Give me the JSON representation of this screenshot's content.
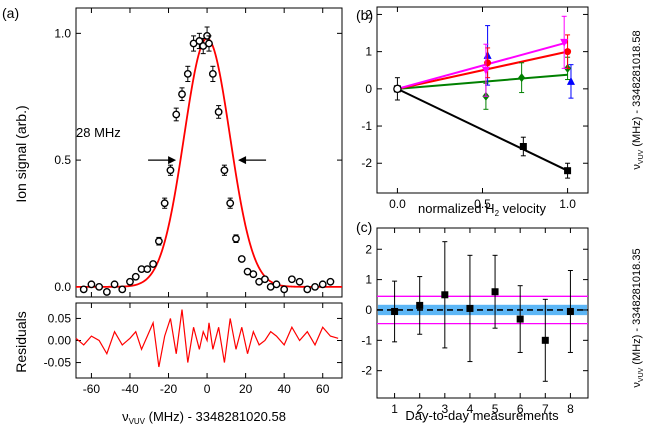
{
  "chart_data": [
    {
      "panel": "a",
      "panel_label": "(a)",
      "type": "scatter",
      "xlabel_main": "ν",
      "xlabel_sub": "VUV",
      "xlabel_rest": " (MHz) - 3348281020.58",
      "ylabel": "Ion signal (arb.)",
      "xlim": [
        -68,
        70
      ],
      "ylim": [
        -0.04,
        1.1
      ],
      "xticks": [
        -60,
        -40,
        -20,
        0,
        20,
        40,
        60
      ],
      "xtick_labels": [
        "-60",
        "-40",
        "-20",
        "0",
        "20",
        "40",
        "60"
      ],
      "yticks": [
        0.0,
        0.5,
        1.0
      ],
      "ytick_labels": [
        "0.0",
        "0.5",
        "1.0"
      ],
      "annotation": "28 MHz",
      "fwhm_markers": [
        -14,
        14
      ],
      "fit": {
        "center": 0,
        "amplitude": 0.98,
        "sigma": 11.9,
        "color": "#ff0000"
      },
      "points": {
        "x": [
          -64,
          -60,
          -56,
          -52,
          -48,
          -44,
          -40,
          -37,
          -34,
          -31,
          -28,
          -25,
          -22,
          -19,
          -16,
          -13,
          -10,
          -7,
          -4,
          -2,
          0,
          1,
          3,
          6,
          9,
          12,
          15,
          18,
          21,
          24,
          27,
          30,
          33,
          36,
          40,
          44,
          48,
          52,
          56,
          60,
          64
        ],
        "y": [
          -0.01,
          0.01,
          0.0,
          -0.02,
          0.01,
          -0.01,
          0.02,
          0.04,
          0.07,
          0.07,
          0.09,
          0.18,
          0.33,
          0.46,
          0.68,
          0.76,
          0.84,
          0.96,
          0.97,
          0.95,
          0.99,
          0.96,
          0.84,
          0.69,
          0.46,
          0.33,
          0.19,
          0.11,
          0.06,
          0.05,
          0.02,
          0.03,
          0.0,
          0.01,
          -0.01,
          0.03,
          0.02,
          -0.01,
          0.0,
          0.01,
          0.02
        ],
        "err": [
          0.01,
          0.01,
          0.01,
          0.01,
          0.01,
          0.01,
          0.01,
          0.01,
          0.01,
          0.01,
          0.01,
          0.015,
          0.02,
          0.02,
          0.025,
          0.025,
          0.03,
          0.03,
          0.03,
          0.03,
          0.035,
          0.03,
          0.03,
          0.025,
          0.02,
          0.02,
          0.015,
          0.01,
          0.01,
          0.01,
          0.01,
          0.01,
          0.01,
          0.01,
          0.01,
          0.01,
          0.01,
          0.01,
          0.01,
          0.01,
          0.01
        ]
      }
    },
    {
      "panel": "a-residuals",
      "type": "line",
      "ylabel": "Residuals",
      "xlim": [
        -68,
        70
      ],
      "ylim": [
        -0.085,
        0.085
      ],
      "yticks": [
        -0.05,
        0.0,
        0.05
      ],
      "ytick_labels": [
        "-0.05",
        "0.00",
        "0.05"
      ],
      "color": "#ff0000",
      "x": [
        -68,
        -64,
        -60,
        -56,
        -52,
        -48,
        -44,
        -40,
        -37,
        -34,
        -31,
        -28,
        -25,
        -22,
        -19,
        -16,
        -13,
        -10,
        -7,
        -4,
        -2,
        0,
        1,
        3,
        6,
        9,
        12,
        15,
        18,
        21,
        24,
        27,
        30,
        33,
        36,
        40,
        44,
        48,
        52,
        56,
        60,
        64,
        68
      ],
      "y": [
        0.005,
        -0.01,
        0.01,
        0.0,
        -0.03,
        0.02,
        -0.01,
        0.005,
        0.02,
        -0.02,
        0.01,
        0.04,
        -0.06,
        0.01,
        0.05,
        -0.03,
        0.07,
        -0.05,
        0.03,
        -0.02,
        0.02,
        0.0,
        0.04,
        -0.02,
        0.03,
        -0.05,
        0.05,
        -0.02,
        0.03,
        -0.03,
        0.02,
        -0.01,
        0.0,
        0.02,
        0.01,
        -0.01,
        0.03,
        0.0,
        0.02,
        -0.01,
        0.03,
        0.01,
        0.005
      ]
    },
    {
      "panel": "b",
      "panel_label": "(b)",
      "type": "scatter",
      "xlabel_pre": "normalized H",
      "xlabel_sub": "2",
      "xlabel_post": " velocity",
      "ylabel_main": "ν",
      "ylabel_sub": "VUV",
      "ylabel_rest": " (MHz) - 3348281018.58",
      "xlim": [
        -0.12,
        1.12
      ],
      "ylim": [
        -2.8,
        2.2
      ],
      "xticks": [
        0,
        0.5,
        1
      ],
      "xtick_labels": [
        "0.0",
        "0.5",
        "1.0"
      ],
      "yticks": [
        -2,
        -1,
        0,
        1,
        2
      ],
      "ytick_labels": [
        "-2",
        "-1",
        "0",
        "1",
        "2"
      ],
      "series": [
        {
          "marker": "square",
          "color": "#000000",
          "x": [
            0,
            0.74,
            1.0
          ],
          "y": [
            0,
            -1.55,
            -2.2
          ],
          "err": [
            0.3,
            0.25,
            0.2
          ],
          "fit_slope": -2.2
        },
        {
          "marker": "triangle",
          "color": "#0000ff",
          "x": [
            0.53,
            1.02
          ],
          "y": [
            0.9,
            0.2
          ],
          "err": [
            0.8,
            0.45
          ],
          "fit_slope": null
        },
        {
          "marker": "diamond",
          "color": "#008000",
          "x": [
            0.52,
            0.73,
            1.0
          ],
          "y": [
            -0.2,
            0.3,
            0.55
          ],
          "err": [
            0.35,
            0.4,
            0.3
          ],
          "fit_slope": 0.38
        },
        {
          "marker": "circle",
          "color": "#ff0000",
          "x": [
            0.53,
            1.0
          ],
          "y": [
            0.7,
            1.0
          ],
          "err": [
            0.4,
            0.45
          ],
          "fit_slope": 1.0
        },
        {
          "marker": "down-triangle",
          "color": "#ff00ff",
          "x": [
            0.52,
            0.98
          ],
          "y": [
            0.5,
            1.25
          ],
          "err": [
            0.7,
            0.7
          ],
          "fit_slope": 1.25
        }
      ]
    },
    {
      "panel": "c",
      "panel_label": "(c)",
      "type": "scatter",
      "xlabel": "Day-to-day measurements",
      "ylabel_main": "ν",
      "ylabel_sub": "VUV",
      "ylabel_rest": " (MHz) - 3348281018.35",
      "xlim": [
        0.3,
        8.7
      ],
      "ylim": [
        -2.9,
        2.7
      ],
      "xticks": [
        1,
        2,
        3,
        4,
        5,
        6,
        7,
        8
      ],
      "xtick_labels": [
        "1",
        "2",
        "3",
        "4",
        "5",
        "6",
        "7",
        "8"
      ],
      "yticks": [
        -2,
        -1,
        0,
        1,
        2
      ],
      "ytick_labels": [
        "-2",
        "-1",
        "0",
        "1",
        "2"
      ],
      "mean": 0.0,
      "band": [
        -0.17,
        0.17
      ],
      "band_color": "#3fa9f5",
      "outer_lines": [
        -0.45,
        0.45
      ],
      "outer_color": "#ff00ff",
      "points": {
        "x": [
          1,
          2,
          3,
          4,
          5,
          6,
          7,
          8
        ],
        "y": [
          -0.05,
          0.15,
          0.5,
          0.05,
          0.6,
          -0.3,
          -1.0,
          -0.05
        ],
        "err": [
          1.0,
          0.95,
          1.75,
          1.75,
          1.2,
          1.1,
          1.35,
          1.35
        ]
      }
    }
  ]
}
